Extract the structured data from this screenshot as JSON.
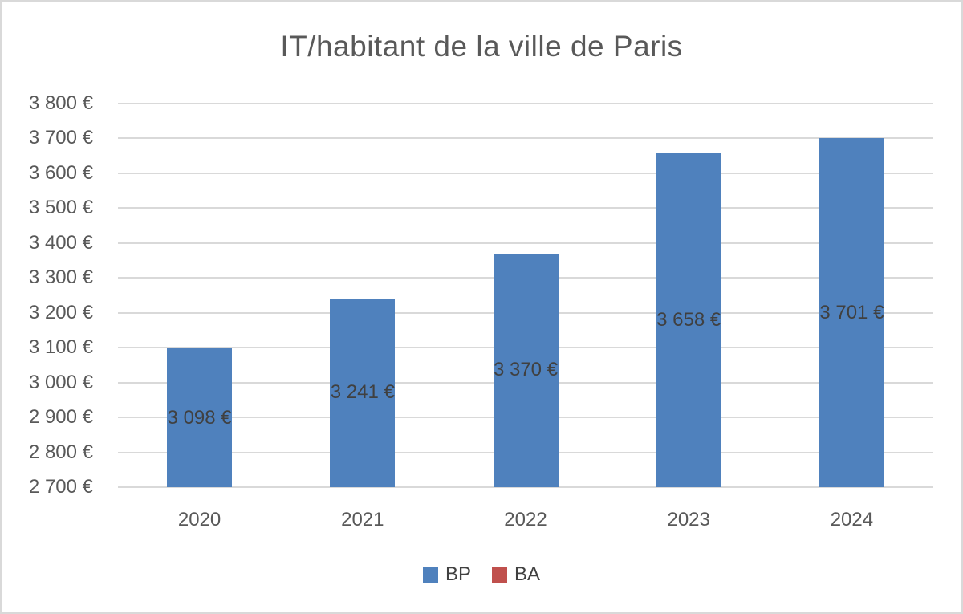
{
  "page": {
    "background": "#FFFFFF",
    "border_color": "#D9D9D9"
  },
  "chart_data": {
    "type": "bar",
    "title": "IT/habitant de la ville de Paris",
    "categories": [
      "2020",
      "2021",
      "2022",
      "2023",
      "2024"
    ],
    "series": [
      {
        "name": "BP",
        "color": "#4F81BD",
        "values": [
          3098,
          3241,
          3370,
          3658,
          3701
        ],
        "labels": [
          "3 098 €",
          "3 241 €",
          "3 370 €",
          "3 658 €",
          "3 701 €"
        ]
      },
      {
        "name": "BA",
        "color": "#C0504D",
        "values": [],
        "labels": []
      }
    ],
    "ylim": [
      2700,
      3800
    ],
    "ytick_step": 100,
    "ytick_labels": [
      "3 800 €",
      "3 700 €",
      "3 600 €",
      "3 500 €",
      "3 400 €",
      "3 300 €",
      "3 200 €",
      "3 100 €",
      "3 000 €",
      "2 900 €",
      "2 800 €",
      "2 700 €"
    ],
    "grid": true,
    "legend_position": "bottom",
    "colors": {
      "grid": "#D9D9D9",
      "axis_text": "#595959",
      "title_text": "#595959",
      "data_label_text": "#404040"
    }
  }
}
